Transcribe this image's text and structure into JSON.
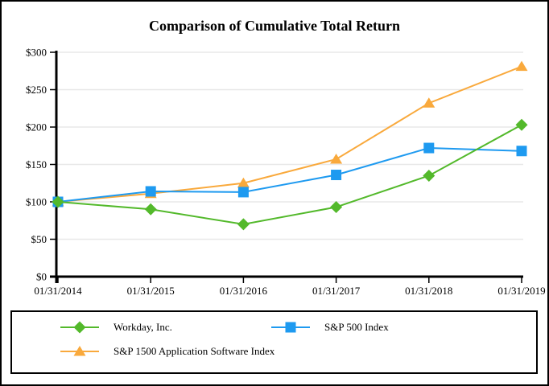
{
  "title": "Comparison of Cumulative Total Return",
  "colors": {
    "workday_green": "#53B92B",
    "sp500_blue": "#1E9AF0",
    "sp1500_orange": "#F9A93C",
    "gridline": "#E8E8E8",
    "axis": "#000000",
    "background": "#FFFFFF",
    "border": "#000000"
  },
  "chart_data": {
    "type": "line",
    "title": "Comparison of Cumulative Total Return",
    "x_categories": [
      "01/31/2014",
      "01/31/2015",
      "01/31/2016",
      "01/31/2017",
      "01/31/2018",
      "01/31/2019"
    ],
    "series": [
      {
        "name": "Workday, Inc.",
        "marker": "diamond",
        "color": "#53B92B",
        "values": [
          100,
          90,
          70,
          93,
          135,
          203
        ]
      },
      {
        "name": "S&P 500 Index",
        "marker": "square",
        "color": "#1E9AF0",
        "values": [
          100,
          114,
          113,
          136,
          172,
          168
        ]
      },
      {
        "name": "S&P 1500 Application Software Index",
        "marker": "triangle",
        "color": "#F9A93C",
        "values": [
          100,
          111,
          125,
          157,
          232,
          281
        ]
      }
    ],
    "xlabel": "",
    "ylabel": "",
    "ylim": [
      0,
      300
    ],
    "yticks": [
      0,
      50,
      100,
      150,
      200,
      250,
      300
    ],
    "ytick_labels": [
      "$0",
      "$50",
      "$100",
      "$150",
      "$200",
      "$250",
      "$300"
    ],
    "grid": true,
    "legend_position": "bottom"
  }
}
